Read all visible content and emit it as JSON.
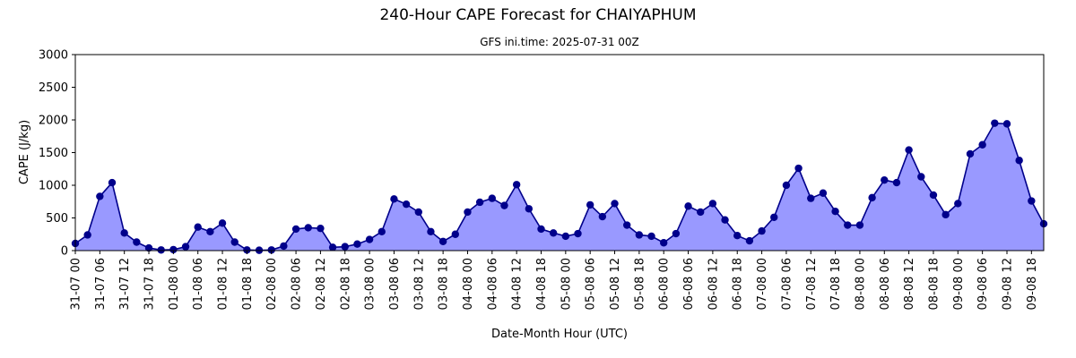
{
  "chart_data": {
    "type": "area",
    "title": "240-Hour CAPE Forecast for CHAIYAPHUM",
    "subtitle": "GFS ini.time: 2025-07-31 00Z",
    "xlabel": "Date-Month Hour (UTC)",
    "ylabel": "CAPE (J/kg)",
    "ylim": [
      0,
      3000
    ],
    "yticks": [
      0,
      500,
      1000,
      1500,
      2000,
      2500,
      3000
    ],
    "x_step_hours": 3,
    "xtick_labels": [
      "31-07 00",
      "31-07 06",
      "31-07 12",
      "31-07 18",
      "01-08 00",
      "01-08 06",
      "01-08 12",
      "01-08 18",
      "02-08 00",
      "02-08 06",
      "02-08 12",
      "02-08 18",
      "03-08 00",
      "03-08 06",
      "03-08 12",
      "03-08 18",
      "04-08 00",
      "04-08 06",
      "04-08 12",
      "04-08 18",
      "05-08 00",
      "05-08 06",
      "05-08 12",
      "05-08 18",
      "06-08 00",
      "06-08 06",
      "06-08 12",
      "06-08 18",
      "07-08 00",
      "07-08 06",
      "07-08 12",
      "07-08 18",
      "08-08 00",
      "08-08 06",
      "08-08 12",
      "08-08 18",
      "09-08 00",
      "09-08 06",
      "09-08 12",
      "09-08 18"
    ],
    "grid": false,
    "colors": {
      "line": "#00008b",
      "fill": "#9999ff",
      "marker": "#00008b"
    },
    "series": [
      {
        "values": [
          110,
          240,
          830,
          1040,
          270,
          130,
          40,
          10,
          15,
          60,
          360,
          290,
          420,
          130,
          10,
          5,
          10,
          70,
          330,
          350,
          340,
          50,
          60,
          100,
          170,
          290,
          790,
          710,
          590,
          290,
          140,
          250,
          590,
          740,
          800,
          690,
          1010,
          640,
          330,
          270,
          220,
          260,
          700,
          520,
          720,
          390,
          240,
          220,
          120,
          260,
          680,
          590,
          720,
          470,
          230,
          150,
          300,
          510,
          1000,
          1260,
          800,
          880,
          600,
          390,
          390,
          810,
          1080,
          1040,
          1540,
          1130,
          850,
          550,
          720,
          1480,
          1620,
          1950,
          1940,
          1380,
          760,
          410
        ]
      }
    ]
  }
}
